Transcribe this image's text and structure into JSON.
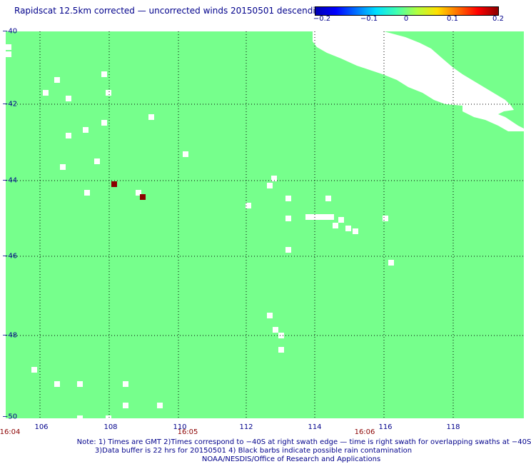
{
  "title": "Rapidscat 12.5km corrected — uncorrected winds 20150501 descending",
  "colorbar": {
    "ticks": [
      "−0.2",
      "−0.1",
      "0",
      "0.1",
      "0.2"
    ],
    "colors": [
      "#0000b4",
      "#0000ff",
      "#0070ff",
      "#00e0ff",
      "#40ffb0",
      "#b0ff40",
      "#ffe000",
      "#ff7000",
      "#ff0000",
      "#8b0000"
    ]
  },
  "map": {
    "background": "#76ff8c",
    "grid_color": "#000000",
    "y_labels": [
      "−40",
      "−42",
      "−44",
      "−46",
      "−48",
      "−50"
    ],
    "x_labels": [
      "106",
      "108",
      "110",
      "112",
      "114",
      "116",
      "118"
    ]
  },
  "times": [
    "16:04",
    "16:05",
    "16:06"
  ],
  "notes": {
    "line1": "Note: 1) Times are GMT 2)Times correspond to −40S at right swath edge — time is right swath for overlapping swaths at −40S",
    "line2": "3)Data buffer is 22 hrs for 20150501 4) Black barbs indicate possible rain contamination",
    "line3": "NOAA/NESDIS/Office of Research and Applications"
  }
}
